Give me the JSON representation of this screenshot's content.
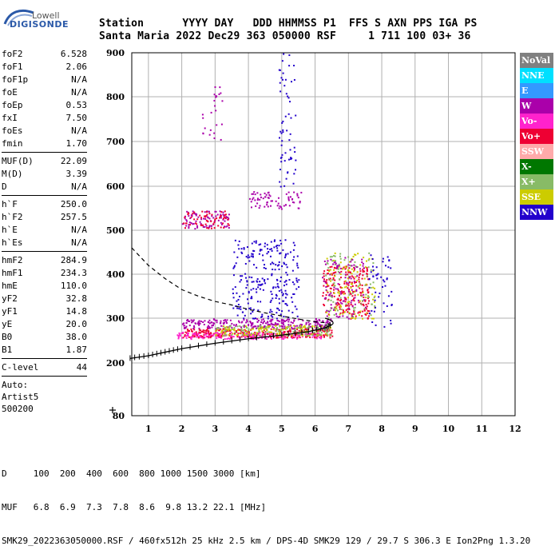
{
  "logo": {
    "line1": "Lowell",
    "line2": "DIGISONDE"
  },
  "header": {
    "labels": "Station      YYYY DAY   DDD HHMMSS P1  FFS S AXN PPS IGA PS",
    "values": "Santa Maria 2022 Dec29 363 050000 RSF     1 711 100 03+ 36"
  },
  "params": {
    "g1": [
      {
        "name": "foF2",
        "value": "6.528"
      },
      {
        "name": "foF1",
        "value": "2.06"
      },
      {
        "name": "foF1p",
        "value": "N/A"
      },
      {
        "name": "foE",
        "value": "N/A"
      },
      {
        "name": "foEp",
        "value": "0.53"
      },
      {
        "name": "fxI",
        "value": "7.50"
      },
      {
        "name": "foEs",
        "value": "N/A"
      },
      {
        "name": "fmin",
        "value": "1.70"
      }
    ],
    "g2": [
      {
        "name": "MUF(D)",
        "value": "22.09"
      },
      {
        "name": "M(D)",
        "value": "3.39"
      },
      {
        "name": "D",
        "value": "N/A"
      }
    ],
    "g3": [
      {
        "name": "h`F",
        "value": "250.0"
      },
      {
        "name": "h`F2",
        "value": "257.5"
      },
      {
        "name": "h`E",
        "value": "N/A"
      },
      {
        "name": "h`Es",
        "value": "N/A"
      }
    ],
    "g4": [
      {
        "name": "hmF2",
        "value": "284.9"
      },
      {
        "name": "hmF1",
        "value": "234.3"
      },
      {
        "name": "hmE",
        "value": "110.0"
      },
      {
        "name": "yF2",
        "value": "32.8"
      },
      {
        "name": "yF1",
        "value": "14.8"
      },
      {
        "name": "yE",
        "value": "20.0"
      },
      {
        "name": "B0",
        "value": "38.0"
      },
      {
        "name": "B1",
        "value": "1.87"
      }
    ],
    "clevel": {
      "name": "C-level",
      "value": "44"
    },
    "auto": [
      "Auto:",
      "Artist5",
      "500200"
    ]
  },
  "legend": [
    {
      "label": "NoVal",
      "bg": "#808080",
      "fg": "#ffffff"
    },
    {
      "label": "NNE",
      "bg": "#00e0ff",
      "fg": "#ffffff"
    },
    {
      "label": "E",
      "bg": "#3399ff",
      "fg": "#ffffff"
    },
    {
      "label": "W",
      "bg": "#aa00aa",
      "fg": "#ffffff"
    },
    {
      "label": "Vo-",
      "bg": "#ff22cc",
      "fg": "#ffffff"
    },
    {
      "label": "Vo+",
      "bg": "#ee0033",
      "fg": "#ffffff"
    },
    {
      "label": "SSW",
      "bg": "#ffaaaa",
      "fg": "#ffffff"
    },
    {
      "label": "X-",
      "bg": "#007700",
      "fg": "#ffffff"
    },
    {
      "label": "X+",
      "bg": "#88bb66",
      "fg": "#ffffff"
    },
    {
      "label": "SSE",
      "bg": "#cccc00",
      "fg": "#ffffff"
    },
    {
      "label": "NNW",
      "bg": "#2200cc",
      "fg": "#ffffff"
    }
  ],
  "bottom": {
    "line1": "D     100  200  400  600  800 1000 1500 3000 [km]",
    "line2": "MUF   6.8  6.9  7.3  7.8  8.6  9.8 13.2 22.1 [MHz]",
    "line3": "SMK29_2022363050000.RSF / 460fx512h 25 kHz 2.5 km / DPS-4D SMK29 129 / 29.7 S 306.3 E Ion2Png 1.3.20"
  },
  "chart_data": {
    "type": "scatter",
    "xlim": [
      0.5,
      12
    ],
    "ylim": [
      80,
      900
    ],
    "x_ticks": [
      1,
      2,
      3,
      4,
      5,
      6,
      7,
      8,
      9,
      10,
      11,
      12
    ],
    "y_ticks": [
      80,
      200,
      300,
      400,
      500,
      600,
      700,
      800,
      900
    ],
    "grid": true,
    "profile_curve": [
      [
        0.45,
        210
      ],
      [
        1,
        216
      ],
      [
        1.5,
        224
      ],
      [
        2,
        232
      ],
      [
        3,
        244
      ],
      [
        4,
        254
      ],
      [
        5,
        262
      ],
      [
        5.8,
        270
      ],
      [
        6.3,
        278
      ],
      [
        6.5,
        285
      ]
    ],
    "profile_upper": [
      [
        0.5,
        460
      ],
      [
        1,
        420
      ],
      [
        1.5,
        390
      ],
      [
        2,
        365
      ],
      [
        2.5,
        350
      ],
      [
        3,
        338
      ],
      [
        3.5,
        330
      ],
      [
        4,
        320
      ],
      [
        4.5,
        312
      ],
      [
        5,
        305
      ],
      [
        5.5,
        298
      ],
      [
        6,
        292
      ],
      [
        6.3,
        290
      ],
      [
        6.5,
        285
      ]
    ],
    "echo_clusters": [
      {
        "color": "#2200cc",
        "x": [
          3.5,
          5.5
        ],
        "y": [
          300,
          480
        ],
        "n": 260
      },
      {
        "color": "#aa00aa",
        "x": [
          2.0,
          6.5
        ],
        "y": [
          278,
          300
        ],
        "n": 260
      },
      {
        "color": "#ee0033",
        "x": [
          2.0,
          6.5
        ],
        "y": [
          258,
          278
        ],
        "n": 300
      },
      {
        "color": "#ff22cc",
        "x": [
          1.8,
          6.2
        ],
        "y": [
          255,
          270
        ],
        "n": 160
      },
      {
        "color": "#cccc00",
        "x": [
          3.0,
          6.5
        ],
        "y": [
          262,
          285
        ],
        "n": 120
      },
      {
        "color": "#88bb66",
        "x": [
          3.0,
          6.5
        ],
        "y": [
          262,
          285
        ],
        "n": 90
      },
      {
        "color": "#ee0033",
        "x": [
          6.2,
          7.6
        ],
        "y": [
          300,
          420
        ],
        "n": 220
      },
      {
        "color": "#cccc00",
        "x": [
          6.3,
          7.8
        ],
        "y": [
          300,
          450
        ],
        "n": 100
      },
      {
        "color": "#88bb66",
        "x": [
          6.3,
          7.8
        ],
        "y": [
          300,
          450
        ],
        "n": 80
      },
      {
        "color": "#aa00aa",
        "x": [
          6.2,
          7.5
        ],
        "y": [
          300,
          440
        ],
        "n": 90
      },
      {
        "color": "#aa00aa",
        "x": [
          2.0,
          3.4
        ],
        "y": [
          505,
          545
        ],
        "n": 90
      },
      {
        "color": "#ee0033",
        "x": [
          2.0,
          3.4
        ],
        "y": [
          505,
          545
        ],
        "n": 60
      },
      {
        "color": "#aa00aa",
        "x": [
          4.0,
          5.6
        ],
        "y": [
          550,
          590
        ],
        "n": 70
      },
      {
        "color": "#2200cc",
        "x": [
          4.9,
          5.4
        ],
        "y": [
          600,
          900
        ],
        "n": 60
      },
      {
        "color": "#aa00aa",
        "x": [
          2.6,
          3.2
        ],
        "y": [
          700,
          830
        ],
        "n": 25
      },
      {
        "color": "#2200cc",
        "x": [
          7.6,
          8.3
        ],
        "y": [
          280,
          450
        ],
        "n": 50
      }
    ]
  }
}
